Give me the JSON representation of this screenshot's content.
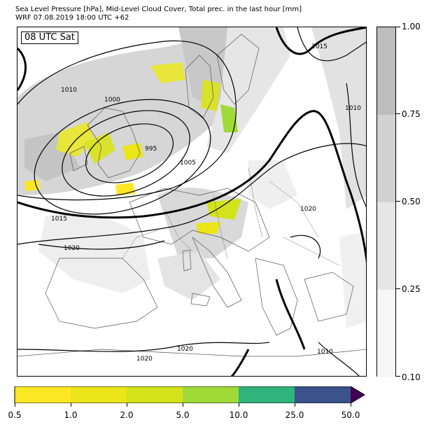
{
  "header": {
    "line1": "Sea Level Pressure [hPa], Mid-Level Cloud Cover, Total prec. in the last hour [mm]",
    "line2": "WRF 07.08.2019 18:00 UTC +62"
  },
  "map": {
    "time_label": "08 UTC Sat",
    "isobar_labels": [
      "995",
      "1000",
      "1005",
      "1010",
      "1015",
      "1020"
    ]
  },
  "colorbars": {
    "cloud_cover": {
      "ticks": [
        "0.10",
        "0.25",
        "0.50",
        "0.75",
        "1.00"
      ],
      "colors": [
        "#f7f7f7",
        "#e6e6e6",
        "#d2d2d2",
        "#bdbdbd"
      ]
    },
    "precipitation": {
      "ticks": [
        "0.5",
        "1.0",
        "2.0",
        "5.0",
        "10.0",
        "25.0",
        "50.0"
      ],
      "colors": [
        "#fde725",
        "#ebe51a",
        "#d2e21b",
        "#a0da39",
        "#2fb47c",
        "#3b528b",
        "#440154"
      ]
    }
  }
}
